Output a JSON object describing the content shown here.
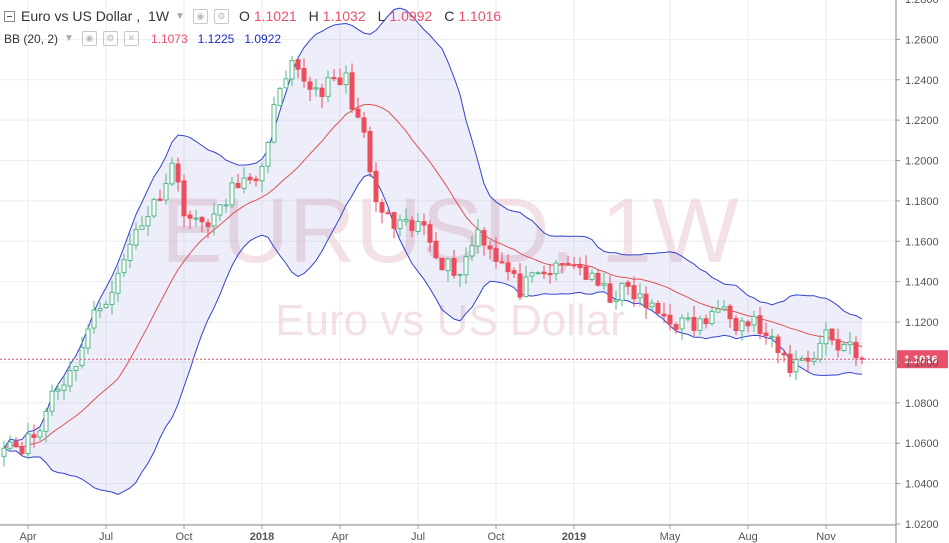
{
  "header": {
    "symbol_title": "Euro vs US Dollar",
    "interval": "1W",
    "ohlc": {
      "open_label": "O",
      "open_value": "1.1021",
      "high_label": "H",
      "high_value": "1.1032",
      "low_label": "L",
      "low_value": "1.0992",
      "close_label": "C",
      "close_value": "1.1016"
    }
  },
  "indicator": {
    "name": "BB (20, 2)",
    "basis": "1.1073",
    "upper": "1.1225",
    "lower": "1.0922"
  },
  "watermark": {
    "symbol": "EURUSD, 1W",
    "description": "Euro vs US Dollar"
  },
  "price_tag": "1.1016",
  "colors": {
    "up": "#53b987",
    "down": "#eb4d5c",
    "basis": "#e05252",
    "band": "#3344cc",
    "band_fill": "rgba(51,68,204,0.09)",
    "last_price": "#e9516a",
    "grid": "#eeeeee",
    "axis_text": "#555555"
  },
  "chart_data": {
    "type": "candlestick",
    "y_axis": {
      "ticks": [
        "1.2800",
        "1.2600",
        "1.2400",
        "1.2200",
        "1.2000",
        "1.1800",
        "1.1600",
        "1.1400",
        "1.1200",
        "1.1000",
        "1.0800",
        "1.0600",
        "1.0400",
        "1.0200"
      ],
      "range": [
        1.0195,
        1.2795
      ]
    },
    "x_axis": {
      "labels": [
        "Apr",
        "Jul",
        "Oct",
        "2018",
        "Apr",
        "Jul",
        "Oct",
        "2019",
        "May",
        "Aug",
        "Nov"
      ],
      "label_week_index": [
        4,
        17,
        30,
        43,
        56,
        69,
        82,
        95,
        111,
        124,
        137
      ],
      "week_count": 144
    },
    "close_anchors": [
      [
        0,
        1.062
      ],
      [
        3,
        1.059
      ],
      [
        6,
        1.066
      ],
      [
        8,
        1.086
      ],
      [
        11,
        1.094
      ],
      [
        15,
        1.123
      ],
      [
        19,
        1.142
      ],
      [
        22,
        1.166
      ],
      [
        25,
        1.178
      ],
      [
        28,
        1.198
      ],
      [
        30,
        1.177
      ],
      [
        32,
        1.168
      ],
      [
        36,
        1.174
      ],
      [
        39,
        1.191
      ],
      [
        42,
        1.186
      ],
      [
        45,
        1.225
      ],
      [
        48,
        1.245
      ],
      [
        52,
        1.235
      ],
      [
        57,
        1.24
      ],
      [
        60,
        1.21
      ],
      [
        62,
        1.178
      ],
      [
        65,
        1.167
      ],
      [
        68,
        1.166
      ],
      [
        70,
        1.168
      ],
      [
        73,
        1.15
      ],
      [
        76,
        1.145
      ],
      [
        79,
        1.166
      ],
      [
        82,
        1.153
      ],
      [
        86,
        1.136
      ],
      [
        89,
        1.142
      ],
      [
        92,
        1.146
      ],
      [
        95,
        1.15
      ],
      [
        98,
        1.14
      ],
      [
        101,
        1.133
      ],
      [
        104,
        1.136
      ],
      [
        108,
        1.126
      ],
      [
        112,
        1.12
      ],
      [
        115,
        1.118
      ],
      [
        118,
        1.122
      ],
      [
        120,
        1.132
      ],
      [
        122,
        1.12
      ],
      [
        125,
        1.12
      ],
      [
        127,
        1.112
      ],
      [
        129,
        1.105
      ],
      [
        131,
        1.098
      ],
      [
        133,
        1.102
      ],
      [
        135,
        1.104
      ],
      [
        137,
        1.115
      ],
      [
        139,
        1.108
      ],
      [
        141,
        1.11
      ],
      [
        143,
        1.1016
      ]
    ],
    "last_candle": {
      "open": 1.1021,
      "high": 1.1032,
      "low": 1.0992,
      "close": 1.1016
    },
    "bollinger": {
      "length": 20,
      "mult": 2,
      "basis": 1.1073,
      "upper": 1.1225,
      "lower": 1.0922
    },
    "last_price": 1.1016
  }
}
